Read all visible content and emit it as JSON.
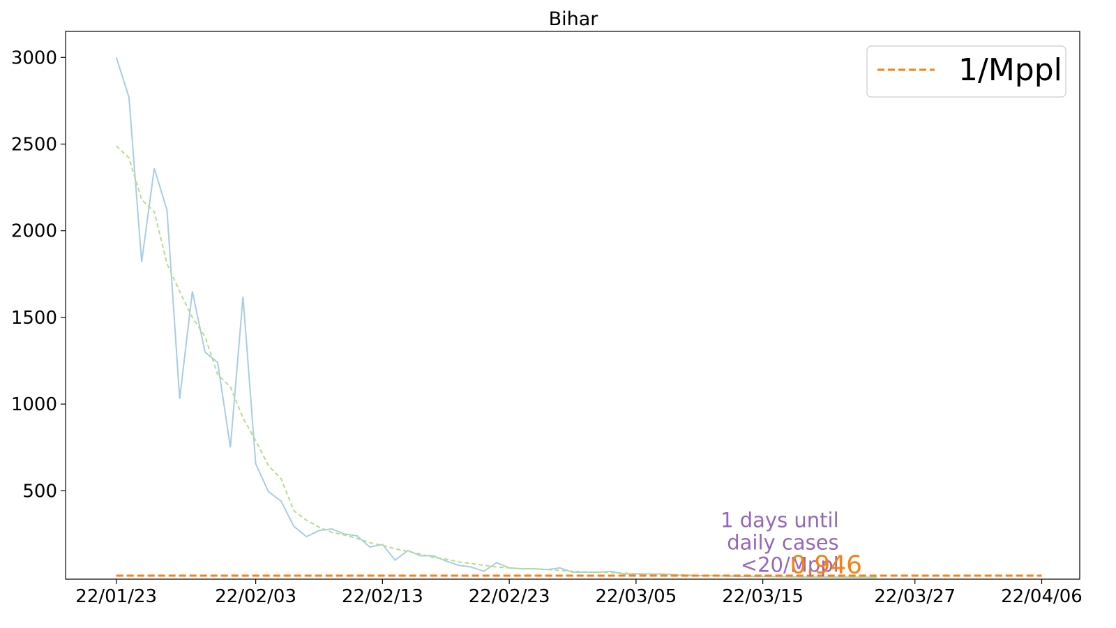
{
  "chart_data": {
    "type": "line",
    "title": "Bihar",
    "xlabel": "",
    "ylabel": "",
    "x_start": "22/01/23",
    "xlim": [
      "22/01/19",
      "22/04/09"
    ],
    "ylim": [
      -10,
      3150
    ],
    "x_ticks": [
      "22/01/23",
      "22/02/03",
      "22/02/13",
      "22/02/23",
      "22/03/05",
      "22/03/15",
      "22/03/27",
      "22/04/06"
    ],
    "y_ticks": [
      500,
      1000,
      1500,
      2000,
      2500,
      3000
    ],
    "grid": false,
    "legend_position": "top-right",
    "legend": [
      "1/Mppl"
    ],
    "series": [
      {
        "color": "#a6cee3",
        "style": "solid",
        "start": "22/01/23",
        "values": [
          3000,
          2770,
          1820,
          2360,
          2120,
          1030,
          1650,
          1300,
          1240,
          750,
          1620,
          655,
          495,
          440,
          295,
          235,
          270,
          280,
          250,
          240,
          175,
          190,
          100,
          155,
          125,
          125,
          95,
          70,
          60,
          35,
          85,
          55,
          50,
          50,
          45,
          55,
          30,
          30,
          30,
          35,
          20,
          20,
          20,
          20,
          15,
          10,
          10,
          10,
          8,
          6,
          5,
          5,
          4,
          3,
          3,
          2,
          2,
          2,
          2,
          1,
          1
        ]
      },
      {
        "color": "#b2df8a",
        "style": "dashed",
        "start": "22/01/23",
        "values": [
          2490,
          2420,
          2180,
          2110,
          1810,
          1650,
          1500,
          1390,
          1170,
          1100,
          920,
          790,
          645,
          570,
          385,
          330,
          290,
          260,
          245,
          225,
          200,
          185,
          165,
          150,
          135,
          115,
          105,
          90,
          80,
          70,
          60,
          55,
          50,
          50,
          45,
          40,
          35,
          32,
          30,
          28,
          25,
          22,
          20,
          18,
          16,
          14,
          12,
          10,
          9,
          8,
          7,
          6,
          5,
          4,
          3,
          3,
          2,
          2,
          2,
          2,
          1
        ]
      },
      {
        "name": "1/Mppl",
        "color": "#ff7f0e",
        "style": "dashed",
        "x": [
          "22/01/23",
          "22/04/06"
        ],
        "values": [
          10,
          10
        ]
      }
    ],
    "annotations": [
      {
        "text_lines": [
          "1 days until",
          "daily cases",
          "<20/Mppl"
        ],
        "color": "#9467bd",
        "x": "22/03/21",
        "y": 0
      },
      {
        "text": "0.946",
        "color": "#ff7f0e",
        "x": "22/03/20",
        "y": 0
      }
    ]
  }
}
